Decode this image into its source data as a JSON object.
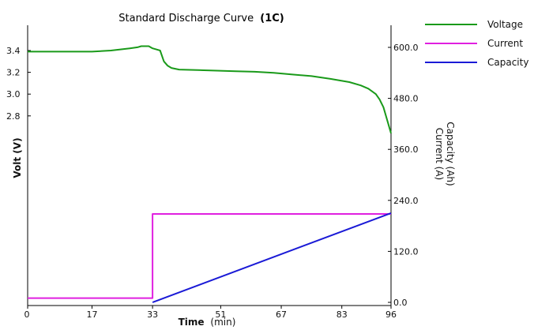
{
  "chart_data": {
    "type": "line",
    "title": "Standard Discharge Curve",
    "title_emphasis": "(1C)",
    "xlabel": "Time",
    "xlabel_unit": "(min)",
    "ylabel_left": "Volt (V)",
    "ylabel_right": [
      "Capacity (Ah)",
      "Current (A)"
    ],
    "x_ticks": [
      {
        "value": 0,
        "label": "0"
      },
      {
        "value": 17,
        "label": "17"
      },
      {
        "value": 33,
        "label": "33"
      },
      {
        "value": 51,
        "label": "51"
      },
      {
        "value": 67,
        "label": "67"
      },
      {
        "value": 83,
        "label": "83"
      },
      {
        "value": 96,
        "label": "96"
      }
    ],
    "y_left_ticks": [
      {
        "value": 2.8,
        "label": "2.8"
      },
      {
        "value": 3.0,
        "label": "3.0"
      },
      {
        "value": 3.2,
        "label": "3.2"
      },
      {
        "value": 3.4,
        "label": "3.4"
      }
    ],
    "y_right_ticks": [
      {
        "value": 0,
        "label": "0.0"
      },
      {
        "value": 120,
        "label": "120.0"
      },
      {
        "value": 240,
        "label": "240.0"
      },
      {
        "value": 360,
        "label": "360.0"
      },
      {
        "value": 480,
        "label": "480.0"
      },
      {
        "value": 600,
        "label": "600.0"
      }
    ],
    "xlim": [
      0,
      96
    ],
    "series": [
      {
        "name": "Voltage",
        "color": "#1a9a1a",
        "axis": "left",
        "x": [
          0,
          5,
          10,
          17,
          22,
          27,
          29,
          30,
          31,
          32,
          33,
          34,
          35,
          36,
          37,
          38,
          40,
          45,
          50,
          55,
          60,
          65,
          70,
          75,
          80,
          85,
          88,
          90,
          92,
          93,
          94,
          95,
          96
        ],
        "y": [
          3.39,
          3.39,
          3.39,
          3.39,
          3.4,
          3.42,
          3.43,
          3.44,
          3.44,
          3.44,
          3.42,
          3.41,
          3.4,
          3.3,
          3.26,
          3.24,
          3.225,
          3.22,
          3.215,
          3.21,
          3.205,
          3.195,
          3.18,
          3.165,
          3.14,
          3.11,
          3.08,
          3.05,
          3.0,
          2.95,
          2.88,
          2.76,
          2.64
        ]
      },
      {
        "name": "Current",
        "color": "#e020e0",
        "axis": "right",
        "x": [
          0,
          33,
          33,
          96,
          96
        ],
        "y": [
          10,
          10,
          208,
          208,
          208
        ]
      },
      {
        "name": "Capacity",
        "color": "#1a1ad6",
        "axis": "right",
        "x": [
          33,
          96
        ],
        "y": [
          0,
          210
        ]
      }
    ],
    "legend": [
      {
        "name": "Voltage",
        "color": "#1a9a1a"
      },
      {
        "name": "Current",
        "color": "#e020e0"
      },
      {
        "name": "Capacity",
        "color": "#1a1ad6"
      }
    ],
    "legend_position": "top-right",
    "grid": false
  }
}
